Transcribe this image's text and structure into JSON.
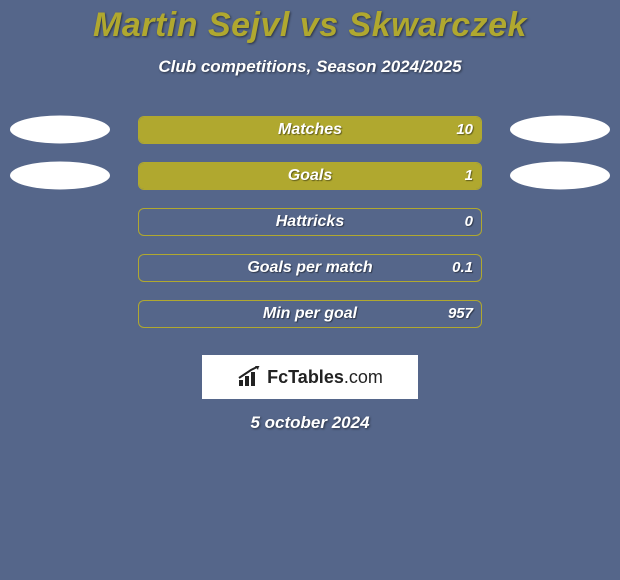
{
  "background_color": "#55668a",
  "title": "Martin Sejvl vs Skwarczek",
  "title_color": "#b0a82f",
  "subtitle": "Club competitions, Season 2024/2025",
  "date": "5 october 2024",
  "brand": {
    "name": "FcTables",
    "suffix": ".com"
  },
  "left_color": "#b0a82f",
  "right_color": "#b0a82f",
  "avatar_color": "#ffffff",
  "stats": [
    {
      "label": "Matches",
      "left_value": "",
      "right_value": "10",
      "left_pct": 100,
      "right_pct": 0,
      "show_left_avatar": true,
      "show_right_avatar": true
    },
    {
      "label": "Goals",
      "left_value": "",
      "right_value": "1",
      "left_pct": 100,
      "right_pct": 0,
      "show_left_avatar": true,
      "show_right_avatar": true
    },
    {
      "label": "Hattricks",
      "left_value": "",
      "right_value": "0",
      "left_pct": 0,
      "right_pct": 0,
      "show_left_avatar": false,
      "show_right_avatar": false
    },
    {
      "label": "Goals per match",
      "left_value": "",
      "right_value": "0.1",
      "left_pct": 0,
      "right_pct": 0,
      "show_left_avatar": false,
      "show_right_avatar": false
    },
    {
      "label": "Min per goal",
      "left_value": "",
      "right_value": "957",
      "left_pct": 0,
      "right_pct": 0,
      "show_left_avatar": false,
      "show_right_avatar": false
    }
  ]
}
